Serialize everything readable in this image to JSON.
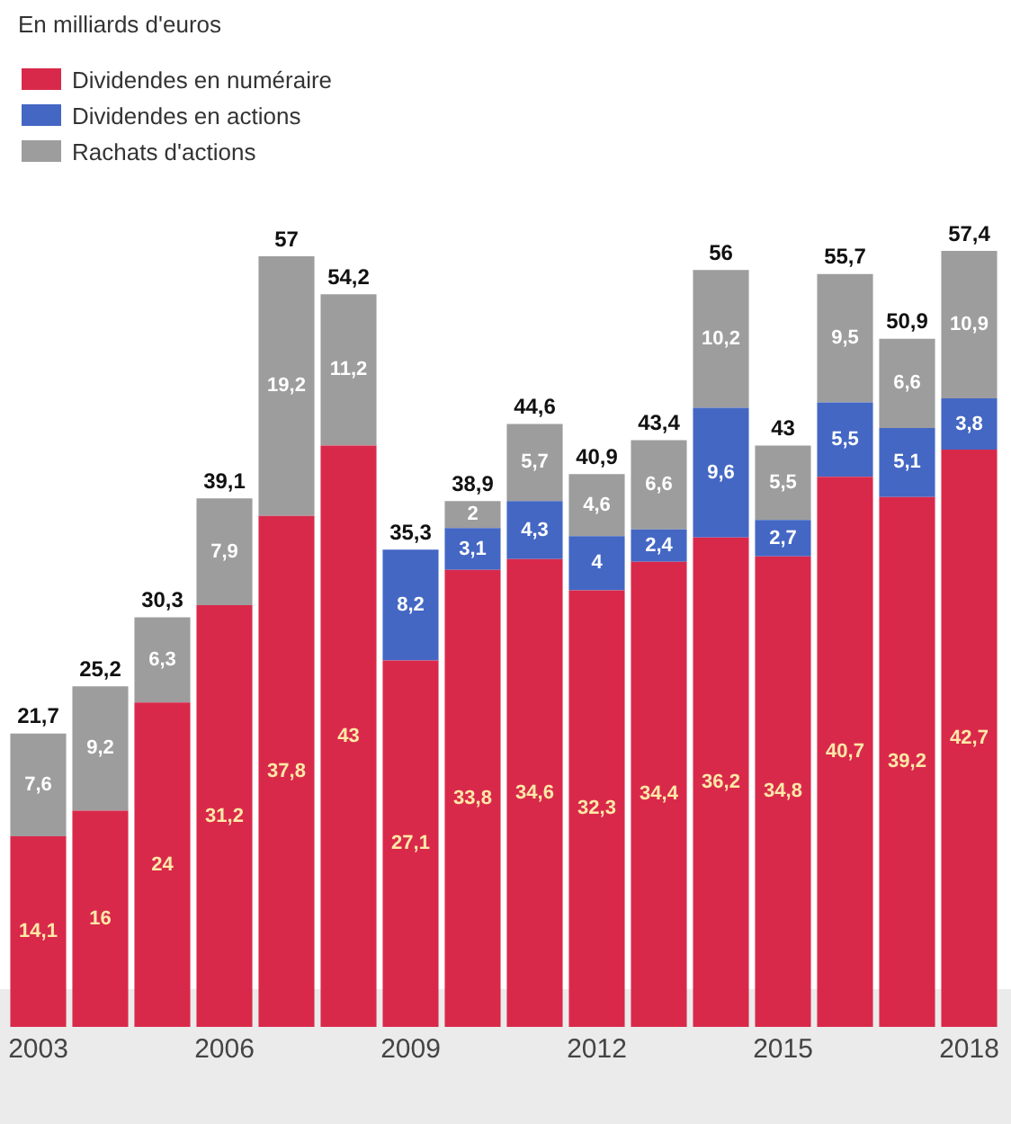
{
  "chart_data": {
    "type": "bar",
    "title": "En milliards d'euros",
    "stacked": true,
    "legend": "top left",
    "grid": false,
    "categories": [
      "2003",
      null,
      null,
      "2006",
      null,
      null,
      "2009",
      null,
      null,
      "2012",
      null,
      null,
      "2015",
      null,
      null,
      "2018"
    ],
    "series": [
      {
        "name": "Dividendes en numéraire",
        "color": "#d9294b",
        "values": [
          14.1,
          16,
          24,
          31.2,
          37.8,
          43,
          27.1,
          33.8,
          34.6,
          32.3,
          34.4,
          36.2,
          34.8,
          40.7,
          39.2,
          42.7
        ],
        "value_labels": [
          "14,1",
          "16",
          "24",
          "31,2",
          "37,8",
          "43",
          "27,1",
          "33,8",
          "34,6",
          "32,3",
          "34,4",
          "36,2",
          "34,8",
          "40,7",
          "39,2",
          "42,7"
        ]
      },
      {
        "name": "Dividendes en actions",
        "color": "#4467c4",
        "values": [
          null,
          null,
          null,
          null,
          null,
          null,
          8.2,
          3.1,
          4.3,
          4,
          2.4,
          9.6,
          2.7,
          5.5,
          5.1,
          3.8
        ],
        "value_labels": [
          null,
          null,
          null,
          null,
          null,
          null,
          "8,2",
          "3,1",
          "4,3",
          "4",
          "2,4",
          "9,6",
          "2,7",
          "5,5",
          "5,1",
          "3,8"
        ]
      },
      {
        "name": "Rachats d'actions",
        "color": "#9d9d9d",
        "values": [
          7.6,
          9.2,
          6.3,
          7.9,
          19.2,
          11.2,
          null,
          2,
          5.7,
          4.6,
          6.6,
          10.2,
          5.5,
          9.5,
          6.6,
          10.9
        ],
        "value_labels": [
          "7,6",
          "9,2",
          "6,3",
          "7,9",
          "19,2",
          "11,2",
          null,
          "2",
          "5,7",
          "4,6",
          "6,6",
          "10,2",
          "5,5",
          "9,5",
          "6,6",
          "10,9"
        ]
      }
    ],
    "totals": [
      "21,7",
      "25,2",
      "30,3",
      "39,1",
      "57",
      "54,2",
      "35,3",
      "38,9",
      "44,6",
      "40,9",
      "43,4",
      "56",
      "43",
      "55,7",
      "50,9",
      "57,4"
    ]
  }
}
